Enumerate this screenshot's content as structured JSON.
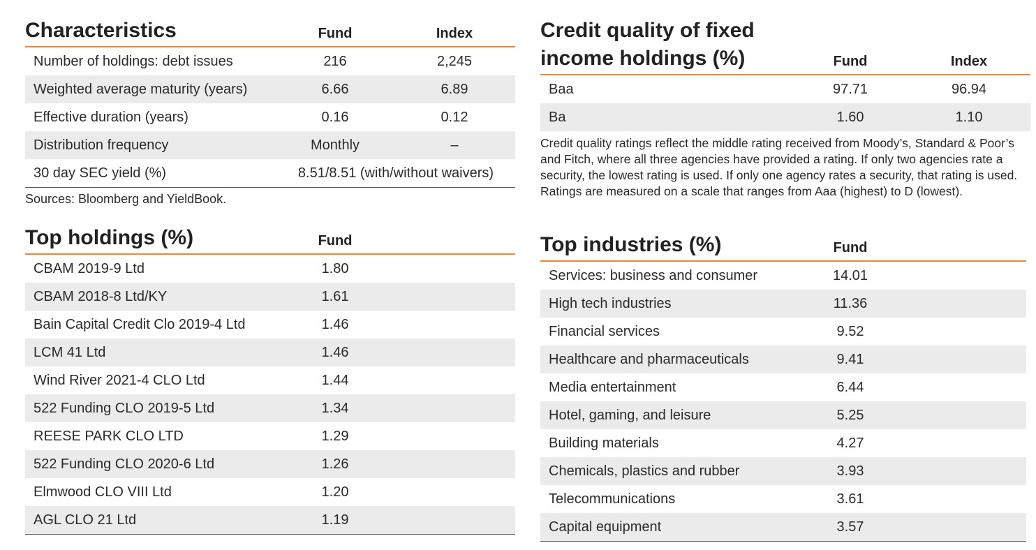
{
  "characteristics": {
    "title": "Characteristics",
    "col_fund": "Fund",
    "col_index": "Index",
    "rows": [
      {
        "label": "Number of holdings: debt issues",
        "fund": "216",
        "index": "2,245"
      },
      {
        "label": "Weighted average maturity (years)",
        "fund": "6.66",
        "index": "6.89"
      },
      {
        "label": "Effective duration (years)",
        "fund": "0.16",
        "index": "0.12"
      },
      {
        "label": "Distribution frequency",
        "fund": "Monthly",
        "index": "–"
      }
    ],
    "sec_yield": {
      "label": "30 day SEC yield (%)",
      "value": "8.51/8.51 (with/without waivers)"
    },
    "sources": "Sources: Bloomberg and YieldBook."
  },
  "top_holdings": {
    "title": "Top holdings (%)",
    "col_fund": "Fund",
    "rows": [
      {
        "label": "CBAM 2019-9 Ltd",
        "fund": "1.80"
      },
      {
        "label": "CBAM 2018-8 Ltd/KY",
        "fund": "1.61"
      },
      {
        "label": "Bain Capital Credit Clo 2019-4 Ltd",
        "fund": "1.46"
      },
      {
        "label": "LCM 41 Ltd",
        "fund": "1.46"
      },
      {
        "label": "Wind River 2021-4 CLO Ltd",
        "fund": "1.44"
      },
      {
        "label": "522 Funding CLO 2019-5 Ltd",
        "fund": "1.34"
      },
      {
        "label": "REESE PARK CLO LTD",
        "fund": "1.29"
      },
      {
        "label": "522 Funding CLO 2020-6 Ltd",
        "fund": "1.26"
      },
      {
        "label": "Elmwood CLO VIII Ltd",
        "fund": "1.20"
      },
      {
        "label": "AGL CLO 21 Ltd",
        "fund": "1.19"
      }
    ]
  },
  "credit_quality": {
    "title_line1": "Credit quality of fixed",
    "title_line2": "income holdings (%)",
    "col_fund": "Fund",
    "col_index": "Index",
    "rows": [
      {
        "label": "Baa",
        "fund": "97.71",
        "index": "96.94"
      },
      {
        "label": "Ba",
        "fund": "1.60",
        "index": "1.10"
      }
    ],
    "note": "Credit quality ratings reflect the middle rating received from Moody’s, Standard & Poor’s and Fitch, where all three agencies have provided a rating. If only two agencies rate a security, the lowest rating is used. If only one agency rates a security, that rating is used. Ratings are measured on a scale that ranges from Aaa (highest) to D (lowest)."
  },
  "top_industries": {
    "title": "Top industries (%)",
    "col_fund": "Fund",
    "rows": [
      {
        "label": "Services: business and consumer",
        "fund": "14.01"
      },
      {
        "label": "High tech industries",
        "fund": "11.36"
      },
      {
        "label": "Financial services",
        "fund": "9.52"
      },
      {
        "label": "Healthcare and pharmaceuticals",
        "fund": "9.41"
      },
      {
        "label": "Media entertainment",
        "fund": "6.44"
      },
      {
        "label": "Hotel, gaming, and leisure",
        "fund": "5.25"
      },
      {
        "label": "Building materials",
        "fund": "4.27"
      },
      {
        "label": "Chemicals, plastics and rubber",
        "fund": "3.93"
      },
      {
        "label": "Telecommunications",
        "fund": "3.61"
      },
      {
        "label": "Capital equipment",
        "fund": "3.57"
      }
    ]
  },
  "colors": {
    "accent": "#e8873a",
    "stripe": "#ebebeb"
  }
}
